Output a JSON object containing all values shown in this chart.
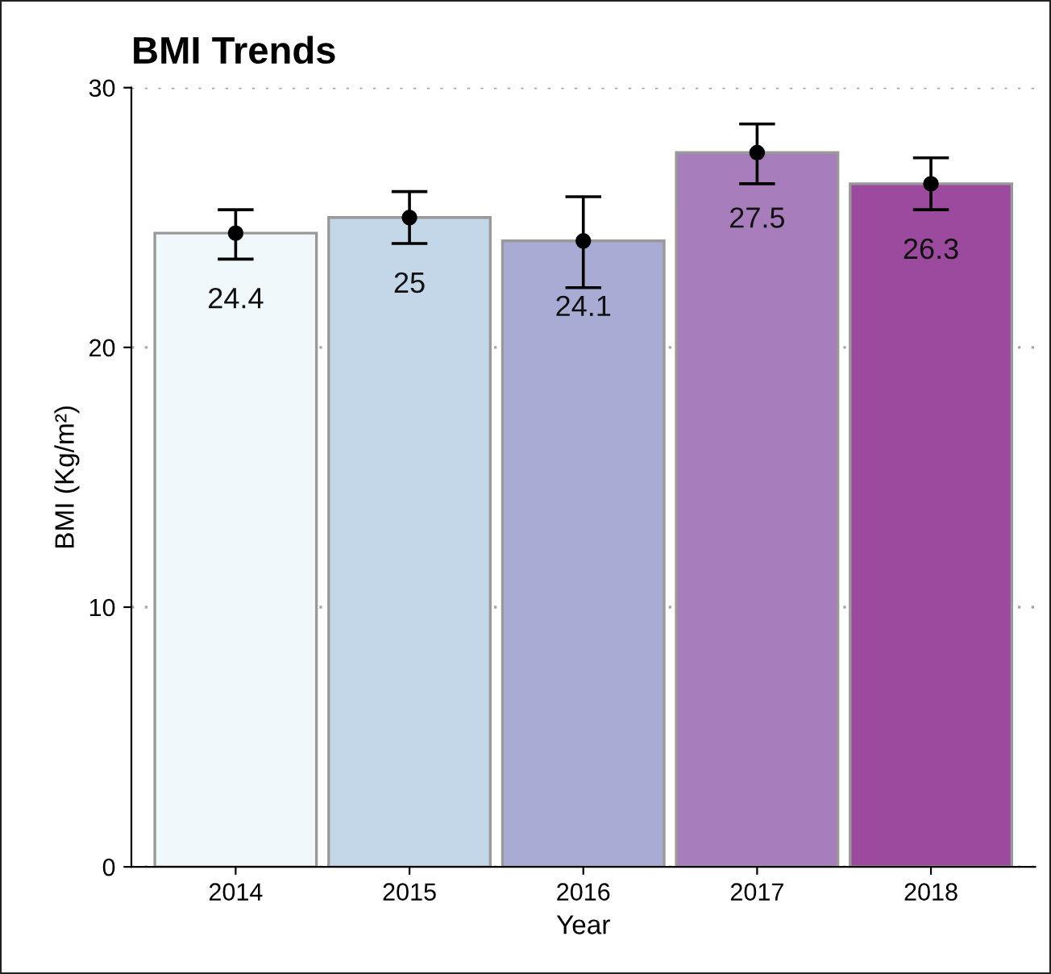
{
  "chart_data": {
    "type": "bar",
    "title": "BMI Trends",
    "xlabel": "Year",
    "ylabel": "BMI (Kg/m²)",
    "categories": [
      "2014",
      "2015",
      "2016",
      "2017",
      "2018"
    ],
    "series": [
      {
        "colors": [
          "#f0f8fb",
          "#c4d7e8",
          "#a8acd4",
          "#a77ebb",
          "#9c4a9e"
        ],
        "values": [
          24.4,
          25,
          24.1,
          27.5,
          26.3
        ],
        "value_labels": [
          "24.4",
          "25",
          "24.1",
          "27.5",
          "26.3"
        ]
      },
      {
        "type": "scatter",
        "color": "#000000",
        "marker": "circle",
        "values": [
          24.4,
          25,
          24.1,
          27.5,
          26.3
        ],
        "errors": [
          [
            23.4,
            25.3
          ],
          [
            24.0,
            26.0
          ],
          [
            22.3,
            25.8
          ],
          [
            26.3,
            28.6
          ],
          [
            25.3,
            27.3
          ]
        ]
      }
    ],
    "ylim": [
      0,
      30
    ],
    "yticks": [
      0,
      10,
      20,
      30
    ],
    "grid": "y"
  }
}
